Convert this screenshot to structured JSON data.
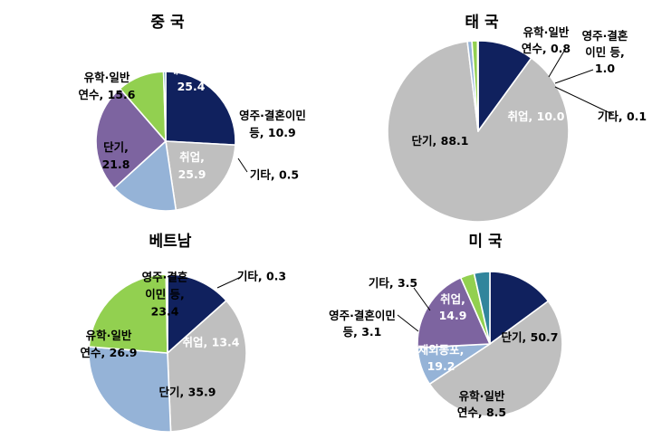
{
  "chart_data": [
    {
      "type": "pie",
      "title": "중 국",
      "slices": [
        {
          "label": "취업",
          "value": 25.9,
          "color": "#10215e"
        },
        {
          "label": "단기",
          "value": 21.8,
          "color": "#bfbfbf"
        },
        {
          "label": "유학·일반 연수",
          "value": 15.6,
          "color": "#95b3d7"
        },
        {
          "label": "재외동포",
          "value": 25.4,
          "color": "#7d64a0"
        },
        {
          "label": "영주·결혼이민 등",
          "value": 10.9,
          "color": "#92d050"
        },
        {
          "label": "기타",
          "value": 0.5,
          "color": "#31859c"
        }
      ],
      "labels": [
        {
          "lines": [
            "취업,",
            "25.9"
          ],
          "color": "#ffffff"
        },
        {
          "lines": [
            "단기,",
            "21.8"
          ],
          "color": "#000000"
        },
        {
          "lines": [
            "유학·일반",
            "연수, 15.6"
          ],
          "color": "#000000"
        },
        {
          "lines": [
            "재외동포,",
            "25.4"
          ],
          "color": "#ffffff"
        },
        {
          "lines": [
            "영주·결혼이민",
            "등, 10.9"
          ],
          "color": "#000000"
        },
        {
          "lines": [
            "기타, 0.5"
          ],
          "color": "#000000"
        }
      ]
    },
    {
      "type": "pie",
      "title": "태 국",
      "slices": [
        {
          "label": "취업",
          "value": 10.0,
          "color": "#10215e"
        },
        {
          "label": "단기",
          "value": 88.1,
          "color": "#bfbfbf"
        },
        {
          "label": "유학·일반 연수",
          "value": 0.8,
          "color": "#95b3d7"
        },
        {
          "label": "영주·결혼이민 등",
          "value": 1.0,
          "color": "#92d050"
        },
        {
          "label": "기타",
          "value": 0.1,
          "color": "#31859c"
        }
      ],
      "labels": [
        {
          "lines": [
            "취업, 10.0"
          ],
          "color": "#ffffff"
        },
        {
          "lines": [
            "단기, 88.1"
          ],
          "color": "#000000"
        },
        {
          "lines": [
            "유학·일반",
            "연수, 0.8"
          ],
          "color": "#000000"
        },
        {
          "lines": [
            "영주·결혼",
            "이민 등,",
            "1.0"
          ],
          "color": "#000000"
        },
        {
          "lines": [
            "기타, 0.1"
          ],
          "color": "#000000"
        }
      ]
    },
    {
      "type": "pie",
      "title": "베트남",
      "slices": [
        {
          "label": "취업",
          "value": 13.4,
          "color": "#10215e"
        },
        {
          "label": "단기",
          "value": 35.9,
          "color": "#bfbfbf"
        },
        {
          "label": "유학·일반 연수",
          "value": 26.9,
          "color": "#95b3d7"
        },
        {
          "label": "영주·결혼이민 등",
          "value": 23.4,
          "color": "#92d050"
        },
        {
          "label": "기타",
          "value": 0.3,
          "color": "#31859c"
        }
      ],
      "labels": [
        {
          "lines": [
            "취업, 13.4"
          ],
          "color": "#ffffff"
        },
        {
          "lines": [
            "단기, 35.9"
          ],
          "color": "#000000"
        },
        {
          "lines": [
            "유학·일반",
            "연수, 26.9"
          ],
          "color": "#000000"
        },
        {
          "lines": [
            "영주·결혼",
            "이민 등,",
            "23.4"
          ],
          "color": "#000000"
        },
        {
          "lines": [
            "기타, 0.3"
          ],
          "color": "#000000"
        }
      ]
    },
    {
      "type": "pie",
      "title": "미 국",
      "slices": [
        {
          "label": "취업",
          "value": 14.9,
          "color": "#10215e"
        },
        {
          "label": "단기",
          "value": 50.7,
          "color": "#bfbfbf"
        },
        {
          "label": "유학·일반 연수",
          "value": 8.5,
          "color": "#95b3d7"
        },
        {
          "label": "재외동포",
          "value": 19.2,
          "color": "#7d64a0"
        },
        {
          "label": "영주·결혼이민 등",
          "value": 3.1,
          "color": "#92d050"
        },
        {
          "label": "기타",
          "value": 3.5,
          "color": "#31859c"
        }
      ],
      "labels": [
        {
          "lines": [
            "취업,",
            "14.9"
          ],
          "color": "#ffffff"
        },
        {
          "lines": [
            "단기, 50.7"
          ],
          "color": "#000000"
        },
        {
          "lines": [
            "유학·일반",
            "연수, 8.5"
          ],
          "color": "#000000"
        },
        {
          "lines": [
            "재외동포,",
            "19.2"
          ],
          "color": "#ffffff"
        },
        {
          "lines": [
            "영주·결혼이민",
            "등, 3.1"
          ],
          "color": "#000000"
        },
        {
          "lines": [
            "기타, 3.5"
          ],
          "color": "#000000"
        }
      ]
    }
  ]
}
